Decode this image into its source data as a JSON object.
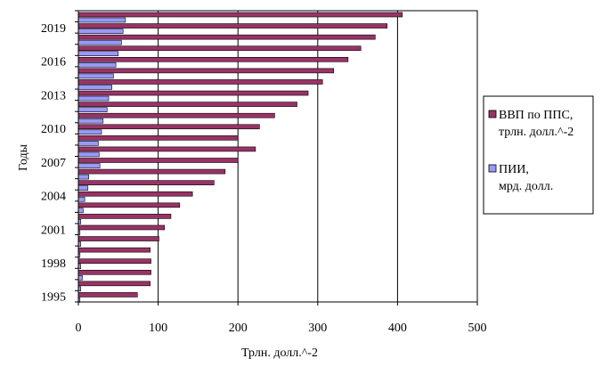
{
  "chart_data": {
    "type": "bar",
    "orientation": "horizontal",
    "categories": [
      "1995",
      "1996",
      "1997",
      "1998",
      "1999",
      "2000",
      "2001",
      "2002",
      "2003",
      "2004",
      "2005",
      "2006",
      "2007",
      "2008",
      "2009",
      "2010",
      "2011",
      "2012",
      "2013",
      "2014",
      "2015",
      "2016",
      "2017",
      "2018",
      "2019",
      "2020"
    ],
    "category_labels_shown": [
      "1995",
      "1998",
      "2001",
      "2004",
      "2007",
      "2010",
      "2013",
      "2016",
      "2019"
    ],
    "series": [
      {
        "name": "ВВП по ППС, трлн. долл.^-2",
        "color": "#993366",
        "values": [
          74,
          90,
          91,
          91,
          90,
          101,
          108,
          116,
          127,
          143,
          170,
          184,
          200,
          222,
          200,
          227,
          246,
          274,
          288,
          306,
          320,
          338,
          354,
          372,
          387,
          406
        ]
      },
      {
        "name": "ПИИ, мрд. долл.",
        "color": "#9999FF",
        "values": [
          2,
          3,
          5,
          3,
          2,
          3,
          2,
          3,
          6,
          8,
          12,
          13,
          27,
          26,
          25,
          29,
          31,
          36,
          38,
          42,
          44,
          47,
          50,
          54,
          56,
          59
        ]
      }
    ],
    "xlim": [
      0,
      500
    ],
    "xticks": [
      "0",
      "100",
      "200",
      "300",
      "400",
      "500"
    ],
    "xlabel": "Трлн. долл.^-2",
    "ylabel": "Годы",
    "grid": true,
    "legend_position": "right",
    "legend": {
      "series1_line1": "ВВП по ППС,",
      "series1_line2": "трлн. долл.^-2",
      "series2_line1": "ПИИ,",
      "series2_line2": "мрд. долл."
    }
  }
}
